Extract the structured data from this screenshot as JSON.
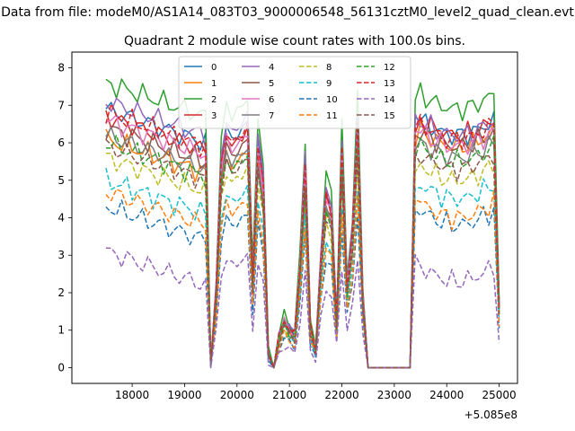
{
  "suptitle": "Data from file: modeM0/AS1A14_083T03_9000006548_56131cztM0_level2_quad_clean.evt",
  "chart_data": {
    "type": "line",
    "title": "Quadrant 2 module wise count rates with 100.0s bins.",
    "xlabel": "",
    "ylabel": "",
    "x_offset_label": "+5.085e8",
    "xlim": [
      16850,
      25350
    ],
    "ylim": [
      -0.42,
      8.42
    ],
    "x_ticks": [
      18000,
      19000,
      20000,
      21000,
      22000,
      23000,
      24000,
      25000
    ],
    "x_tick_labels": [
      "18000",
      "19000",
      "20000",
      "21000",
      "22000",
      "23000",
      "24000",
      "25000"
    ],
    "y_ticks": [
      0,
      1,
      2,
      3,
      4,
      5,
      6,
      7,
      8
    ],
    "y_tick_labels": [
      "0",
      "1",
      "2",
      "3",
      "4",
      "5",
      "6",
      "7",
      "8"
    ],
    "grid": false,
    "legend_location": "upper center",
    "series": [
      {
        "name": "0",
        "color": "#1f77b4",
        "dash": "solid"
      },
      {
        "name": "1",
        "color": "#ff7f0e",
        "dash": "solid"
      },
      {
        "name": "2",
        "color": "#2ca02c",
        "dash": "solid"
      },
      {
        "name": "3",
        "color": "#d62728",
        "dash": "solid"
      },
      {
        "name": "4",
        "color": "#9467bd",
        "dash": "solid"
      },
      {
        "name": "5",
        "color": "#8c564b",
        "dash": "solid"
      },
      {
        "name": "6",
        "color": "#e377c2",
        "dash": "solid"
      },
      {
        "name": "7",
        "color": "#7f7f7f",
        "dash": "solid"
      },
      {
        "name": "8",
        "color": "#bcbd22",
        "dash": "dashed"
      },
      {
        "name": "9",
        "color": "#17becf",
        "dash": "dashed"
      },
      {
        "name": "10",
        "color": "#1f77b4",
        "dash": "dashed"
      },
      {
        "name": "11",
        "color": "#ff7f0e",
        "dash": "dashed"
      },
      {
        "name": "12",
        "color": "#2ca02c",
        "dash": "dashed"
      },
      {
        "name": "13",
        "color": "#d62728",
        "dash": "dashed"
      },
      {
        "name": "14",
        "color": "#9467bd",
        "dash": "dashed"
      },
      {
        "name": "15",
        "color": "#8c564b",
        "dash": "dashed"
      }
    ],
    "shape": {
      "plateau1_x": [
        17500,
        19400
      ],
      "plateau2_x": [
        23500,
        24900
      ],
      "segments": [
        {
          "x": 19500,
          "f": 0.02
        },
        {
          "x": 19600,
          "f": 0.3
        },
        {
          "x": 19700,
          "f": 0.8
        },
        {
          "x": 19800,
          "f": 0.93
        },
        {
          "x": 19900,
          "f": 0.88
        },
        {
          "x": 20000,
          "f": 0.9
        },
        {
          "x": 20100,
          "f": 0.92
        },
        {
          "x": 20200,
          "f": 0.95
        },
        {
          "x": 20300,
          "f": 0.35
        },
        {
          "x": 20400,
          "f": 0.88
        },
        {
          "x": 20500,
          "f": 0.72
        },
        {
          "x": 20600,
          "f": 0.06
        },
        {
          "x": 20700,
          "f": 0.0
        },
        {
          "x": 20800,
          "f": 0.12
        },
        {
          "x": 20900,
          "f": 0.19
        },
        {
          "x": 21000,
          "f": 0.15
        },
        {
          "x": 21100,
          "f": 0.13
        },
        {
          "x": 21200,
          "f": 0.4
        },
        {
          "x": 21300,
          "f": 0.8
        },
        {
          "x": 21400,
          "f": 0.16
        },
        {
          "x": 21500,
          "f": 0.07
        },
        {
          "x": 21600,
          "f": 0.42
        },
        {
          "x": 21700,
          "f": 0.68
        },
        {
          "x": 21800,
          "f": 0.62
        },
        {
          "x": 21900,
          "f": 0.18
        },
        {
          "x": 22000,
          "f": 0.86
        },
        {
          "x": 22100,
          "f": 0.32
        },
        {
          "x": 22200,
          "f": 0.52
        },
        {
          "x": 22300,
          "f": 0.96
        },
        {
          "x": 22400,
          "f": 0.28
        },
        {
          "x": 22500,
          "f": 0.0
        },
        {
          "x": 23300,
          "f": 0.0
        },
        {
          "x": 23400,
          "f": 0.95
        }
      ],
      "end_point": {
        "x": 25000,
        "f": 0.25
      }
    },
    "base_levels": [
      6.9,
      6.1,
      7.6,
      6.7,
      7.1,
      6.4,
      6.6,
      6.2,
      5.6,
      5.0,
      4.3,
      4.7,
      6.0,
      6.8,
      3.1,
      5.9
    ],
    "plateau2_levels": [
      6.6,
      6.3,
      7.3,
      6.6,
      6.6,
      6.3,
      6.3,
      6.0,
      5.4,
      4.9,
      4.2,
      4.4,
      5.9,
      6.5,
      2.7,
      5.7
    ]
  }
}
